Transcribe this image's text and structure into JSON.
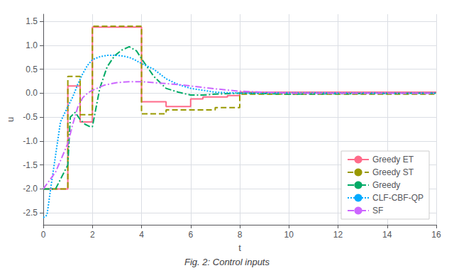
{
  "chart_data": {
    "type": "line",
    "title": "Fig. 2: Control inputs",
    "xlabel": "t",
    "ylabel": "u",
    "xlim": [
      0,
      16
    ],
    "ylim": [
      -2.75,
      1.65
    ],
    "xticks": [
      0,
      2,
      4,
      6,
      8,
      10,
      12,
      14,
      16
    ],
    "yticks": [
      -2.5,
      {
        "value": -2.0,
        "label": "-2.0"
      },
      -1.5,
      {
        "value": -1.0,
        "label": "-1.0"
      },
      -0.5,
      {
        "value": 0.0,
        "label": "0.0"
      },
      0.5,
      {
        "value": 1.0,
        "label": "1.0"
      },
      1.5
    ],
    "grid": true,
    "legend": "lower right",
    "series": [
      {
        "name": "Greedy ET",
        "color": "#FF6B8A",
        "line_style": "solid",
        "x": [
          0,
          1,
          1,
          1.5,
          1.5,
          2,
          2,
          4,
          4,
          5,
          5,
          6,
          6,
          6.5,
          6.5,
          7.5,
          7.5,
          8,
          8,
          16
        ],
        "values": [
          -2.0,
          -2.0,
          0.15,
          0.15,
          -0.6,
          -0.6,
          1.38,
          1.38,
          -0.18,
          -0.18,
          -0.28,
          -0.28,
          -0.12,
          -0.12,
          -0.08,
          -0.08,
          -0.05,
          -0.05,
          0.02,
          0.02
        ]
      },
      {
        "name": "Greedy ST",
        "color": "#999900",
        "line_style": "dashed",
        "x": [
          0,
          1,
          1,
          1.5,
          1.5,
          2,
          2,
          4,
          4,
          5,
          5,
          7,
          7,
          8,
          8,
          16
        ],
        "values": [
          -2.0,
          -2.0,
          0.35,
          0.35,
          -0.45,
          -0.45,
          1.4,
          1.4,
          -0.43,
          -0.43,
          -0.35,
          -0.35,
          -0.3,
          -0.3,
          -0.02,
          -0.02
        ]
      },
      {
        "name": "Greedy",
        "color": "#00AA66",
        "line_style": "dashdot",
        "x": [
          0,
          0.5,
          1.0,
          1.1,
          1.3,
          1.5,
          1.7,
          1.9,
          2.0,
          2.3,
          2.6,
          2.9,
          3.2,
          3.5,
          3.8,
          4.0,
          4.5,
          5.0,
          5.5,
          6.0,
          6.5,
          7.0,
          8.0,
          10.0,
          16.0
        ],
        "values": [
          -2.0,
          -2.0,
          -1.5,
          -0.5,
          -0.4,
          -0.55,
          -0.65,
          -0.7,
          -0.7,
          0.1,
          0.55,
          0.78,
          0.9,
          0.97,
          0.88,
          0.72,
          0.35,
          0.1,
          0.02,
          -0.04,
          -0.04,
          -0.02,
          0.0,
          -0.02,
          0.0
        ]
      },
      {
        "name": "CLF-CBF-QP",
        "color": "#00AAFF",
        "line_style": "dotted",
        "x": [
          0,
          0.15,
          0.3,
          0.5,
          0.7,
          1.0,
          1.2,
          1.4,
          1.6,
          1.8,
          2.0,
          2.3,
          2.6,
          3.0,
          3.3,
          3.6,
          4.0,
          4.5,
          5.0,
          5.5,
          6.0,
          6.5,
          7.0,
          8.0,
          10.0,
          16.0
        ],
        "values": [
          -2.6,
          -2.55,
          -2.0,
          -1.3,
          -0.6,
          -0.28,
          -0.08,
          0.18,
          0.4,
          0.58,
          0.7,
          0.76,
          0.79,
          0.79,
          0.77,
          0.73,
          0.62,
          0.5,
          0.3,
          0.18,
          0.1,
          0.06,
          0.02,
          0.0,
          0.01,
          0.0
        ]
      },
      {
        "name": "SF",
        "color": "#CC66FF",
        "line_style": "dashdot",
        "x": [
          0,
          0.5,
          1.0,
          1.2,
          1.4,
          1.6,
          1.8,
          2.0,
          2.5,
          3.0,
          3.5,
          4.0,
          4.5,
          5.0,
          5.5,
          6.0,
          7.0,
          8.0,
          10.0,
          16.0
        ],
        "values": [
          -2.0,
          -1.65,
          -1.05,
          -0.65,
          -0.3,
          -0.1,
          0.0,
          0.06,
          0.17,
          0.22,
          0.24,
          0.24,
          0.22,
          0.2,
          0.18,
          0.15,
          0.09,
          0.04,
          0.0,
          0.0
        ]
      }
    ]
  }
}
